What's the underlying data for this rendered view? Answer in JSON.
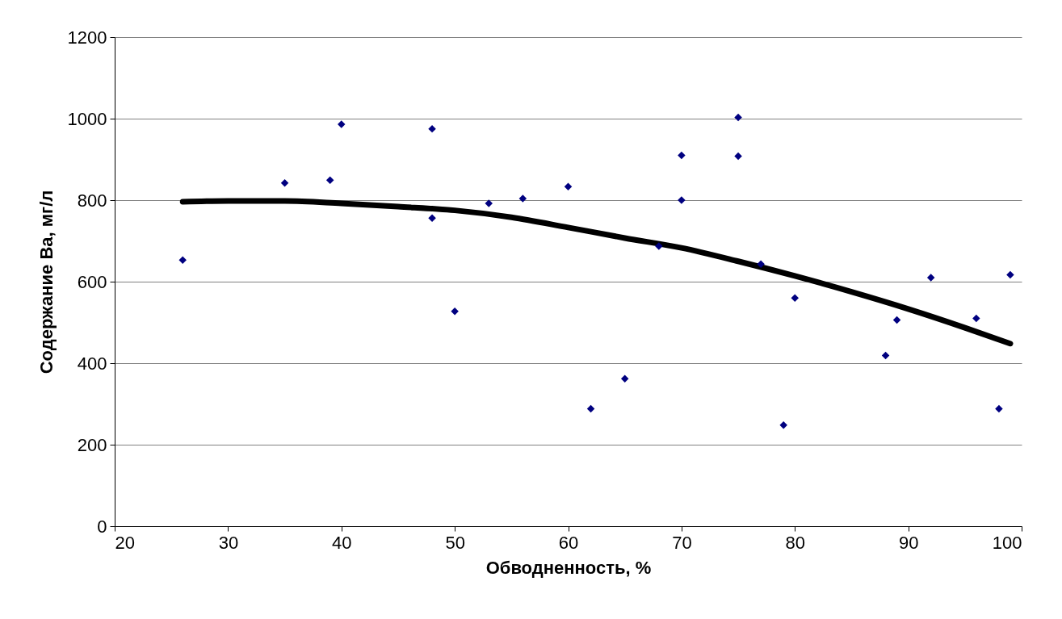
{
  "chart_data": {
    "type": "scatter",
    "xlabel": "Обводненность, %",
    "ylabel": "Содержание Ba, мг/л",
    "xlim": [
      20,
      100
    ],
    "ylim": [
      0,
      1200
    ],
    "xticks": [
      20,
      30,
      40,
      50,
      60,
      70,
      80,
      90,
      100
    ],
    "yticks": [
      0,
      200,
      400,
      600,
      800,
      1000,
      1200
    ],
    "grid": "y",
    "series": [
      {
        "color": "#000080",
        "marker": "diamond",
        "x": [
          26,
          35,
          39,
          40,
          48,
          48,
          50,
          53,
          56,
          60,
          62,
          65,
          68,
          70,
          70,
          75,
          75,
          77,
          79,
          80,
          88,
          89,
          92,
          96,
          98,
          99
        ],
        "values": [
          653,
          842,
          849,
          986,
          975,
          756,
          527,
          792,
          804,
          833,
          288,
          362,
          687,
          910,
          800,
          1003,
          908,
          643,
          248,
          560,
          419,
          506,
          610,
          510,
          288,
          617
        ]
      },
      {
        "type": "line",
        "color": "#000000",
        "line_style": "solid",
        "x": [
          26,
          30,
          35,
          40,
          45,
          50,
          55,
          60,
          65,
          70,
          75,
          80,
          85,
          90,
          95,
          99
        ],
        "values": [
          796,
          798,
          798,
          792,
          784,
          775,
          758,
          733,
          707,
          683,
          650,
          614,
          575,
          533,
          487,
          448
        ]
      }
    ]
  }
}
